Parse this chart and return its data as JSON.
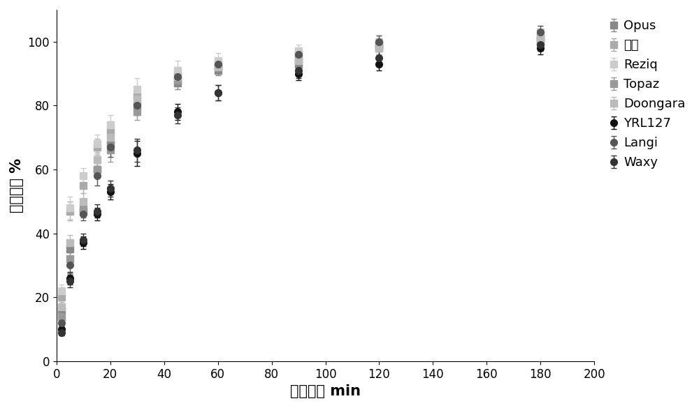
{
  "title": "",
  "xlabel": "消化时间 min",
  "ylabel": "淀粉消化 %",
  "xlim": [
    0,
    200
  ],
  "ylim": [
    0,
    110
  ],
  "xticks": [
    0,
    20,
    40,
    60,
    80,
    100,
    120,
    140,
    160,
    180,
    200
  ],
  "yticks": [
    0,
    20,
    40,
    60,
    80,
    100
  ],
  "series": [
    {
      "name": "Opus",
      "color": "#888888",
      "marker": "s",
      "x": [
        2,
        5,
        10,
        15,
        20,
        30,
        45,
        60,
        90,
        120,
        180
      ],
      "y": [
        16,
        35,
        47,
        60,
        68,
        80,
        87,
        91,
        93,
        98,
        100
      ],
      "yerr": [
        1.5,
        2.5,
        2.0,
        2.5,
        2.5,
        2.5,
        2.0,
        1.5,
        2.0,
        2.0,
        2.0
      ]
    },
    {
      "name": "越光",
      "color": "#aaaaaa",
      "marker": "s",
      "x": [
        2,
        5,
        10,
        15,
        20,
        30,
        45,
        60,
        90,
        120,
        180
      ],
      "y": [
        20,
        47,
        55,
        67,
        72,
        83,
        90,
        93,
        96,
        99,
        102
      ],
      "yerr": [
        2.0,
        3.0,
        2.5,
        2.5,
        3.0,
        3.0,
        2.0,
        2.0,
        2.0,
        2.0,
        2.0
      ]
    },
    {
      "name": "Reziq",
      "color": "#cccccc",
      "marker": "s",
      "x": [
        2,
        5,
        10,
        15,
        20,
        30,
        45,
        60,
        90,
        120,
        180
      ],
      "y": [
        22,
        48,
        58,
        68,
        74,
        85,
        91,
        94,
        97,
        100,
        103
      ],
      "yerr": [
        2.0,
        3.5,
        2.5,
        3.0,
        3.0,
        3.5,
        3.0,
        2.5,
        2.0,
        2.0,
        2.0
      ]
    },
    {
      "name": "Topaz",
      "color": "#999999",
      "marker": "s",
      "x": [
        2,
        5,
        10,
        15,
        20,
        30,
        45,
        60,
        90,
        120,
        180
      ],
      "y": [
        14,
        32,
        48,
        60,
        66,
        78,
        88,
        92,
        95,
        99,
        101
      ],
      "yerr": [
        1.5,
        2.0,
        2.5,
        2.0,
        3.5,
        2.5,
        3.0,
        2.0,
        2.0,
        2.0,
        1.5
      ]
    },
    {
      "name": "Doongara",
      "color": "#bbbbbb",
      "marker": "s",
      "x": [
        2,
        5,
        10,
        15,
        20,
        30,
        45,
        60,
        90,
        120,
        180
      ],
      "y": [
        17,
        37,
        50,
        63,
        70,
        82,
        89,
        92,
        94,
        98,
        101
      ],
      "yerr": [
        1.5,
        2.5,
        2.5,
        2.5,
        2.5,
        2.5,
        2.5,
        2.0,
        2.0,
        2.0,
        2.0
      ]
    },
    {
      "name": "YRL127",
      "color": "#111111",
      "marker": "o",
      "x": [
        2,
        5,
        10,
        15,
        20,
        30,
        45,
        60,
        90,
        120,
        180
      ],
      "y": [
        10,
        26,
        37,
        46,
        53,
        65,
        78,
        84,
        90,
        93,
        98
      ],
      "yerr": [
        1.0,
        2.0,
        2.0,
        2.0,
        2.5,
        4.0,
        2.5,
        2.5,
        2.0,
        2.0,
        2.0
      ]
    },
    {
      "name": "Langi",
      "color": "#555555",
      "marker": "o",
      "x": [
        2,
        5,
        10,
        15,
        20,
        30,
        45,
        60,
        90,
        120,
        180
      ],
      "y": [
        12,
        30,
        46,
        58,
        67,
        80,
        89,
        93,
        96,
        100,
        103
      ],
      "yerr": [
        1.5,
        2.5,
        2.0,
        3.0,
        3.0,
        3.0,
        2.5,
        2.0,
        2.0,
        2.0,
        2.0
      ]
    },
    {
      "name": "Waxy",
      "color": "#333333",
      "marker": "o",
      "x": [
        2,
        5,
        10,
        15,
        20,
        30,
        45,
        60,
        90,
        120,
        180
      ],
      "y": [
        9,
        25,
        38,
        47,
        54,
        66,
        77,
        84,
        91,
        95,
        99
      ],
      "yerr": [
        1.0,
        2.0,
        2.0,
        2.0,
        2.5,
        3.5,
        2.5,
        2.5,
        2.5,
        2.5,
        2.0
      ]
    }
  ],
  "legend_fontsize": 13,
  "axis_fontsize": 15,
  "tick_fontsize": 12,
  "marker_size": 7,
  "capsize": 3
}
